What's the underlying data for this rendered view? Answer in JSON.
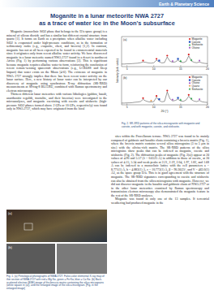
{
  "header": {
    "section": "Earth & Planetary Science"
  },
  "title": [
    "Moganite in a lunar meteorite NWA 2727",
    "as a trace of water ice in the Moon's subsurface"
  ],
  "left_text": [
    "Moganite (monoclinic SiO2 phase that belongs to the I2/a space group) is a mineral of silicon dioxide and has a similar but different crystal structure from quartz [1]. It forms on Earth as a precipitate when alkaline water including SiO2 is evaporated under high-pressure conditions, as in the formation of sedimentary rocks (e.g., evaporite, chert, and breccia) [1,2]. In contrast, moganite has not at all been expected to be found in extraterrestrial materials since it originates only from recent alkaline water activity. We have discovered moganite in a lunar meteorite named NWA 2727 found in a desert in northwest Africa (Fig. 1) by performing various observations [3]. This is significant because moganite requires alkaline water to form, reinforcing the conclusion of recent remote-sensing spacecraft observations (e.g., LCROSS and Deep Impact) that water exists on the Moon [4-6]. The existence of moganite in NWA 2727 strongly implies that there has been recent water activity on the lunar surface. Here, a new history of lunar water can be interpreted by our discovery of moganite using synchrotron X-ray diffraction (SR-XRD) measurements at SPring-8 BL15XU, combined with Raman spectrometry and electron microscopy.",
    "Thirteen different lunar meteorites with various lithologies (gabbro, basalt, anorthositic regolith, troctolite, and their breccias) were investigated in the microanalyses, and moganite coexisting with coesite and stishovite (high-pressure SiO2 phases formed above 2 GPa or 10 GPa, respectively) was found only in NWA 2727, which may have originated from the local"
  ],
  "right_text": [
    "sites within the Procellarum terrane. NWA 2727 was found to be mainly composed of gabbroic and basaltic clasts containing a breccia matrix (Fig. 1), where the breccia matrix contains several silica micrograins (3 to 5 μm in size) with the olivine-rich matrix. The SR-XRD patterns of the silica micrograins show peaks that can be indexed as moganite, coesite and stishovite (Fig. 2). The diffraction peaks of moganite (Fig. 2(a)) appear at 2θ values of 4.90 and 5.57 (λ = 0.6525 Å) in addition to those of coesite, at 2θ values of 4.15, 5.34 and weak peaks at 2.21, 2.19, 2.04, 1.97, 1.82, and 1.68 Å can be indexed to a monoclinic lattice with the cell parameters a = 8.771(1) Å, b = 4.883(1) Å, c = 10.773(1) Å, β = 90.36(2)°, and V = 463.0(1) Å3, as the space group I2/a. This is in good agreement with the structure of moganite. The SR-XRD signatures corresponding to coesite and stishovite can also be obtained from the silica micrograins with moganite. However, we did not discover moganite in the basaltic and gabbroic clasts of NWA 2727 or in the other lunar meteorites examined by Raman spectroscopy and transmission electron microscopy also demonstrated the moganite feature in the rest of the SR-XRD analyses.",
    "Moganite was found in only one of the 13 samples. If terrestrial weathering had produced moganite in the"
  ],
  "figure1": {
    "panels": [
      "(a)",
      "(b)"
    ],
    "caption": "Fig. 1. (a) Petrological photographs of NWA 2727. False-color elemental X-ray map of thin section of NWA 2727 with red = Mg Kα, green = Fe Kα, blue = Ca Kα. (b) Back-scattered electron (BSE) image of the breccia matrix containing the silica micrograins (white square in (a)), and the enlarged image of the silica micrograin. [Fig. in the enlarged image]"
  },
  "figure2": {
    "caption": "Fig. 2. SR-XRD patterns of the silica microgranite with moganite and coesite, and with moganite, coesite, and stishovite."
  },
  "chart_data": [
    {
      "type": "line",
      "title": "(a)",
      "y_label": "Intensity (arb. units)",
      "xlim": [
        4,
        20
      ],
      "xticks": [
        5,
        10,
        15,
        20
      ],
      "ylim": [
        0,
        140
      ],
      "tick_labels": "x",
      "legend": "upper right",
      "series": [
        {
          "type": "line",
          "color": "#222222",
          "x": [
            4,
            4.5,
            5,
            5.5,
            6,
            6.5,
            7,
            7.5,
            8,
            8.5,
            9,
            9.5,
            10,
            10.5,
            11,
            11.5,
            12,
            12.5,
            13,
            13.5,
            14,
            14.5,
            15,
            15.5,
            16,
            16.5,
            17,
            17.5,
            18,
            18.5,
            19,
            19.5,
            20
          ],
          "values": [
            12,
            12,
            13,
            13,
            14,
            15,
            16,
            18,
            22,
            20,
            17,
            16,
            18,
            30,
            22,
            17,
            19,
            45,
            25,
            20,
            22,
            30,
            21,
            19,
            24,
            50,
            26,
            20,
            18,
            22,
            17,
            15,
            14
          ]
        },
        {
          "name": "Moganite",
          "type": "scatter",
          "marker": "circle",
          "color": "#d62020",
          "x": [
            8,
            10.5,
            12.5,
            16.5
          ],
          "values": [
            28,
            36,
            51,
            56
          ]
        },
        {
          "name": "Coesite",
          "type": "scatter",
          "marker": "square",
          "color": "#2050c0",
          "x": [
            11,
            14.5
          ],
          "values": [
            28,
            36
          ]
        },
        {
          "name": "Stishovite",
          "type": "scatter",
          "marker": "triangle",
          "color": "#20a040",
          "x": [
            15,
            17
          ],
          "values": [
            27,
            32
          ]
        },
        {
          "name": "Olivine",
          "type": "scatter",
          "marker": "diamond",
          "color": "#a050c0",
          "x": [
            13.5,
            18.5
          ],
          "values": [
            26,
            28
          ]
        }
      ]
    },
    {
      "type": "line",
      "title": "(b)",
      "x_label": "2θ (°)",
      "xlim": [
        4,
        20
      ],
      "xticks": [
        5,
        10,
        15,
        20
      ],
      "ylim": [
        0,
        140
      ],
      "tick_labels": "x",
      "legend": "upper right",
      "series": [
        {
          "type": "line",
          "color": "#222222",
          "x": [
            4,
            4.5,
            5,
            5.5,
            6,
            6.5,
            7,
            7.5,
            8,
            8.5,
            9,
            9.5,
            10,
            10.5,
            11,
            11.5,
            12,
            12.5,
            13,
            13.5,
            14,
            14.5,
            15,
            15.5,
            16,
            16.5,
            17,
            17.5,
            18,
            18.5,
            19,
            19.5,
            20
          ],
          "values": [
            8,
            8,
            9,
            9,
            10,
            12,
            13,
            15,
            25,
            18,
            14,
            13,
            15,
            35,
            20,
            14,
            16,
            60,
            28,
            18,
            20,
            26,
            18,
            16,
            22,
            40,
            24,
            17,
            15,
            20,
            14,
            12,
            11
          ]
        },
        {
          "name": "Moganite",
          "type": "scatter",
          "marker": "circle",
          "color": "#d62020",
          "x": [
            8,
            10.5,
            12.5,
            16.5
          ],
          "values": [
            31,
            41,
            66,
            46
          ]
        },
        {
          "name": "Coesite",
          "type": "scatter",
          "marker": "square",
          "color": "#2050c0",
          "x": [
            11,
            14.5
          ],
          "values": [
            26,
            32
          ]
        },
        {
          "name": "Olivine",
          "type": "scatter",
          "marker": "diamond",
          "color": "#a050c0",
          "x": [
            13.5,
            18.5
          ],
          "values": [
            24,
            26
          ]
        },
        {
          "name": "Quartz",
          "type": "scatter",
          "marker": "star",
          "color": "#e08020",
          "x": [
            9.5
          ],
          "values": [
            19
          ]
        },
        {
          "name": "Stishovite",
          "type": "scatter",
          "marker": "triangle",
          "color": "#20a040",
          "x": [
            15,
            17
          ],
          "values": [
            24,
            30
          ]
        }
      ]
    }
  ]
}
